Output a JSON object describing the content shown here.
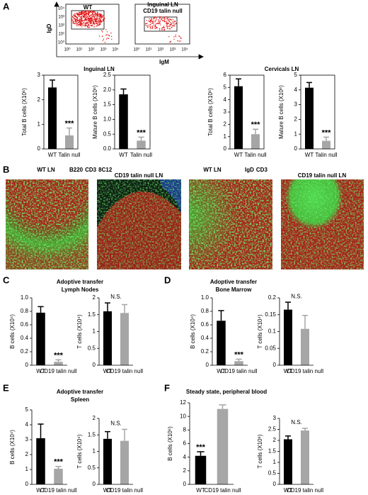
{
  "panels": [
    "A",
    "B",
    "C",
    "D",
    "E",
    "F"
  ],
  "flow_plots": {
    "group_title": "Inguinal LN",
    "y_label": "IgD",
    "x_label": "IgM",
    "tick_labels": [
      "10⁰",
      "10¹",
      "10²",
      "10³",
      "10⁴"
    ],
    "plots": [
      {
        "title": "WT"
      },
      {
        "title": "CD19 talin null"
      }
    ]
  },
  "micrographs": {
    "legends": [
      [
        {
          "text": "B220",
          "color": "#22b422"
        },
        {
          "text": "CD3",
          "color": "#e02020"
        },
        {
          "text": "8C12",
          "color": "#2030d0"
        }
      ],
      [
        {
          "text": "IgD",
          "color": "#22b422"
        },
        {
          "text": "CD3",
          "color": "#e02020"
        }
      ]
    ],
    "images": [
      {
        "title": "WT LN"
      },
      {
        "title": "CD19 talin null LN"
      },
      {
        "title": "WT LN"
      },
      {
        "title": "CD19 talin null LN"
      }
    ]
  },
  "chart_data": [
    {
      "type": "bar",
      "title": "Inguinal LN",
      "ylabel": "Total B cells (X10⁶)",
      "categories": [
        "WT",
        "Talin null"
      ],
      "values": [
        2.5,
        0.55
      ],
      "errors": [
        0.3,
        0.3
      ],
      "colors": [
        "#000000",
        "#a6a6a6"
      ],
      "significance": [
        null,
        "***"
      ],
      "ylim": [
        0,
        3
      ],
      "yticks": [
        0,
        1,
        2,
        3
      ],
      "frame": "box"
    },
    {
      "type": "bar",
      "ylabel": "Mature B cells (X10⁶)",
      "categories": [
        "WT",
        "Talin null"
      ],
      "values": [
        1.85,
        0.28
      ],
      "errors": [
        0.18,
        0.12
      ],
      "colors": [
        "#000000",
        "#a6a6a6"
      ],
      "significance": [
        null,
        "***"
      ],
      "ylim": [
        0,
        2.5
      ],
      "yticks": [
        {
          "value": 0,
          "label": "0.0"
        },
        0.5,
        {
          "value": 1,
          "label": "1.0"
        },
        1.5,
        {
          "value": 2,
          "label": "2.0"
        },
        2.5
      ],
      "frame": "box"
    },
    {
      "type": "bar",
      "title": "Cervicals LN",
      "ylabel": "Total B cells (X10⁶)",
      "categories": [
        "WT",
        "Talin null"
      ],
      "values": [
        5.1,
        1.2
      ],
      "errors": [
        0.6,
        0.4
      ],
      "colors": [
        "#000000",
        "#a6a6a6"
      ],
      "significance": [
        null,
        "***"
      ],
      "ylim": [
        0,
        6
      ],
      "yticks": [
        0,
        1,
        2,
        3,
        4,
        5,
        6
      ],
      "frame": "box"
    },
    {
      "type": "bar",
      "ylabel": "Mature B cells (X10⁶)",
      "categories": [
        "WT",
        "Talin null"
      ],
      "values": [
        4.15,
        0.55
      ],
      "errors": [
        0.35,
        0.25
      ],
      "colors": [
        "#000000",
        "#a6a6a6"
      ],
      "significance": [
        null,
        "***"
      ],
      "ylim": [
        0,
        5
      ],
      "yticks": [
        0,
        1,
        2,
        3,
        4,
        5
      ],
      "frame": "box"
    },
    {
      "type": "bar",
      "title": "Adoptive transfer",
      "subtitle": "Lymph Nodes",
      "ylabel": "B cells (X10⁴)",
      "categories": [
        "WT",
        "CD19 talin null"
      ],
      "values": [
        0.78,
        0.05
      ],
      "errors": [
        0.09,
        0.03
      ],
      "colors": [
        "#000000",
        "#a6a6a6"
      ],
      "significance": [
        null,
        "***"
      ],
      "ylim": [
        0,
        1
      ],
      "yticks": [
        0,
        0.2,
        0.4,
        0.6,
        0.8,
        {
          "value": 1,
          "label": "1.0"
        }
      ],
      "frame": "axes"
    },
    {
      "type": "bar",
      "ylabel": "T cells (X10⁴)",
      "categories": [
        "WT",
        "CD19 talin null"
      ],
      "values": [
        1.6,
        1.55
      ],
      "errors": [
        0.25,
        0.25
      ],
      "colors": [
        "#000000",
        "#a6a6a6"
      ],
      "annotation": "N.S.",
      "ylim": [
        0,
        2
      ],
      "yticks": [
        0,
        0.5,
        1,
        1.5,
        2
      ],
      "frame": "axes"
    },
    {
      "type": "bar",
      "title": "Adoptive transfer",
      "subtitle": "Bone Marrow",
      "ylabel": "B cells (X10⁴)",
      "categories": [
        "WT",
        "CD19 talin null"
      ],
      "values": [
        0.66,
        0.06
      ],
      "errors": [
        0.15,
        0.03
      ],
      "colors": [
        "#000000",
        "#a6a6a6"
      ],
      "significance": [
        null,
        "***"
      ],
      "ylim": [
        0,
        1
      ],
      "yticks": [
        0,
        0.2,
        0.4,
        0.6,
        0.8,
        {
          "value": 1,
          "label": "1.0"
        }
      ],
      "frame": "axes"
    },
    {
      "type": "bar",
      "ylabel": "T cells (X10⁴)",
      "categories": [
        "WT",
        "CD19 talin null"
      ],
      "values": [
        0.165,
        0.108
      ],
      "errors": [
        0.022,
        0.04
      ],
      "colors": [
        "#000000",
        "#a6a6a6"
      ],
      "annotation": "N.S.",
      "ylim": [
        0,
        0.2
      ],
      "yticks": [
        0,
        0.05,
        0.1,
        0.15,
        0.2
      ],
      "frame": "axes"
    },
    {
      "type": "bar",
      "title": "Adoptive transfer",
      "subtitle": "Spleen",
      "ylabel": "B cells (X10⁴)",
      "categories": [
        "WT",
        "CD19 talin null"
      ],
      "values": [
        3.1,
        1.05
      ],
      "errors": [
        0.95,
        0.15
      ],
      "colors": [
        "#000000",
        "#a6a6a6"
      ],
      "significance": [
        null,
        "***"
      ],
      "ylim": [
        0,
        5
      ],
      "yticks": [
        0,
        1,
        2,
        3,
        4,
        5
      ],
      "frame": "axes"
    },
    {
      "type": "bar",
      "ylabel": "T cells (X10⁴)",
      "categories": [
        "WT",
        "CD19 talin null"
      ],
      "values": [
        1.38,
        1.32
      ],
      "errors": [
        0.22,
        0.35
      ],
      "colors": [
        "#000000",
        "#a6a6a6"
      ],
      "annotation": "N.S.",
      "ylim": [
        0,
        2
      ],
      "yticks": [
        0,
        0.5,
        1,
        1.5,
        2
      ],
      "frame": "axes"
    },
    {
      "type": "bar",
      "title": "Steady state, peripheral blood",
      "ylabel": "B cells (X10⁶)",
      "categories": [
        "WT",
        "CD19 talin null"
      ],
      "values": [
        4.2,
        11.1
      ],
      "errors": [
        0.6,
        0.6
      ],
      "colors": [
        "#000000",
        "#a6a6a6"
      ],
      "significance": [
        "***",
        null
      ],
      "ylim": [
        0,
        12
      ],
      "yticks": [
        0,
        2,
        4,
        6,
        8,
        10,
        12
      ],
      "frame": "axes"
    },
    {
      "type": "bar",
      "ylabel": "T cells (X10⁶)",
      "categories": [
        "WT",
        "CD19 talin null"
      ],
      "values": [
        2.05,
        2.45
      ],
      "errors": [
        0.15,
        0.1
      ],
      "colors": [
        "#000000",
        "#a6a6a6"
      ],
      "annotation": "N.S.",
      "ylim": [
        0,
        3
      ],
      "yticks": [
        0,
        0.5,
        1,
        1.5,
        2,
        2.5,
        3
      ],
      "frame": "axes"
    }
  ]
}
